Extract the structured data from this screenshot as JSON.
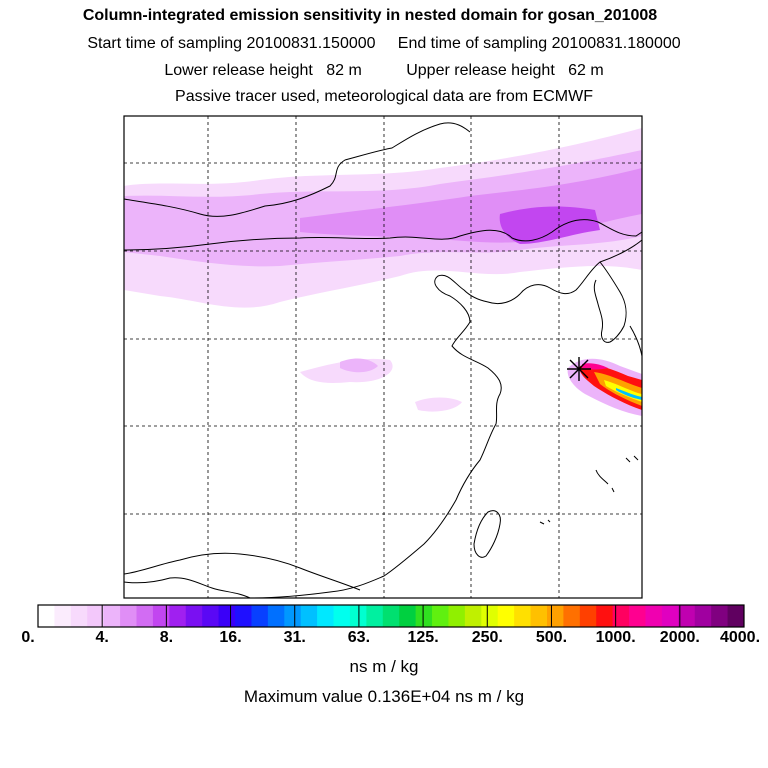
{
  "header": {
    "title": "Column-integrated emission sensitivity in nested domain for gosan_201008",
    "line2": "Start time of sampling 20100831.150000     End time of sampling 20100831.180000",
    "line3": "Lower release height   82 m          Upper release height   62 m",
    "line4": "Passive tracer used, meteorological data are from ECMWF"
  },
  "colorbar": {
    "labels": [
      "0.",
      "4.",
      "8.",
      "16.",
      "31.",
      "63.",
      "125.",
      "250.",
      "500.",
      "1000.",
      "2000.",
      "4000."
    ],
    "colors": [
      "#ffffff",
      "#fbecfd",
      "#f7dafc",
      "#f3c8fb",
      "#ecb4fa",
      "#e08ef6",
      "#d26cf3",
      "#c246f0",
      "#a020f0",
      "#7a10f2",
      "#5a08f5",
      "#3a00f8",
      "#1f10ff",
      "#0840ff",
      "#0070ff",
      "#0098ff",
      "#00c0ff",
      "#00e8ff",
      "#00ffee",
      "#00ffd0",
      "#00f0a0",
      "#00e070",
      "#00d040",
      "#30e020",
      "#60f010",
      "#90f000",
      "#c0f000",
      "#e0ff00",
      "#ffff00",
      "#ffe000",
      "#ffc000",
      "#ffa000",
      "#ff7000",
      "#ff4000",
      "#ff1010",
      "#ff0060",
      "#ff0090",
      "#f000b0",
      "#e000c0",
      "#c000b0",
      "#a000a0",
      "#800080",
      "#600060"
    ],
    "units": "ns m / kg"
  },
  "max_value_text": "Maximum value  0.136E+04 ns m / kg",
  "map": {
    "receptor_marker": "star-cross-icon",
    "grid_style": "dashed",
    "plume_colors": {
      "light": "#f3c8fb",
      "medium": "#e08ef6",
      "dark": "#c246f0",
      "core": [
        "#ff1010",
        "#ffa000",
        "#ffff00",
        "#00d040",
        "#0098ff",
        "#ff0090"
      ]
    }
  }
}
